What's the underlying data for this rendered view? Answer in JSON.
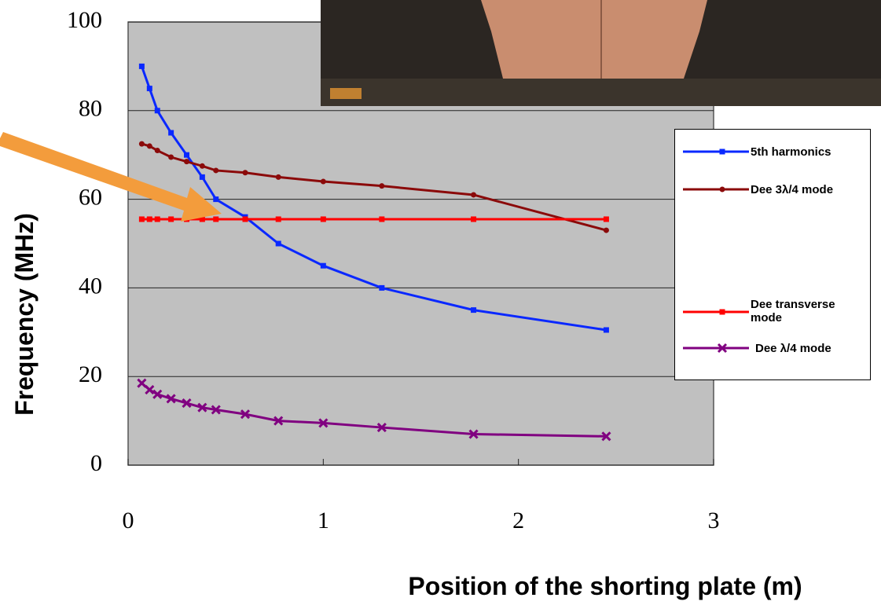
{
  "chart_data": {
    "type": "line",
    "x_label": "Position of the shorting plate (m)",
    "y_label": "Frequency (MHz)",
    "x": [
      0.07,
      0.11,
      0.15,
      0.22,
      0.3,
      0.38,
      0.45,
      0.6,
      0.77,
      1.0,
      1.3,
      1.77,
      2.45
    ],
    "xlim": [
      0,
      3
    ],
    "xticks": [
      0,
      1,
      2,
      3
    ],
    "ylim": [
      0,
      100
    ],
    "yticks": [
      0,
      20,
      40,
      60,
      80,
      100
    ],
    "grid": true,
    "series": [
      {
        "name": "5th harmonics",
        "color": "#0a28ff",
        "marker": "square",
        "values": [
          90,
          85,
          80,
          75,
          70,
          65,
          60,
          56,
          50,
          45,
          40,
          35,
          30.5
        ]
      },
      {
        "name": "Dee 3λ/4 mode",
        "color": "#8b0a0a",
        "marker": "circle",
        "values": [
          72.5,
          72,
          71,
          69.5,
          68.5,
          67.5,
          66.5,
          66,
          65,
          64,
          63,
          61,
          53
        ]
      },
      {
        "name": "Dee transverse mode",
        "color": "#ff0000",
        "marker": "square",
        "values": [
          55.5,
          55.5,
          55.5,
          55.5,
          55.5,
          55.5,
          55.5,
          55.5,
          55.5,
          55.5,
          55.5,
          55.5,
          55.5
        ]
      },
      {
        "name": "Dee λ/4 mode",
        "color": "#800080",
        "marker": "cross",
        "values": [
          18.5,
          17,
          16,
          15,
          14,
          13,
          12.5,
          11.5,
          10,
          9.5,
          8.5,
          7,
          6.5
        ]
      }
    ]
  }
}
